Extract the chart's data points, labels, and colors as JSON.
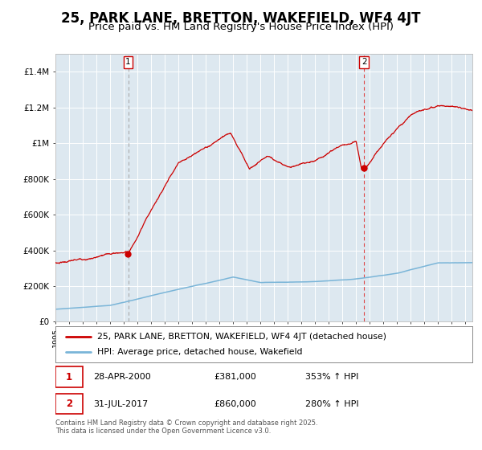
{
  "title": "25, PARK LANE, BRETTON, WAKEFIELD, WF4 4JT",
  "subtitle": "Price paid vs. HM Land Registry's House Price Index (HPI)",
  "ylim": [
    0,
    1500000
  ],
  "yticks": [
    0,
    200000,
    400000,
    600000,
    800000,
    1000000,
    1200000,
    1400000
  ],
  "ytick_labels": [
    "£0",
    "£200K",
    "£400K",
    "£600K",
    "£800K",
    "£1M",
    "£1.2M",
    "£1.4M"
  ],
  "hpi_color": "#7ab5d8",
  "price_color": "#cc0000",
  "vline1_color": "#aaaaaa",
  "vline2_color": "#ee5555",
  "marker_color": "#cc0000",
  "plot_bg_color": "#dde8f0",
  "legend_label_price": "25, PARK LANE, BRETTON, WAKEFIELD, WF4 4JT (detached house)",
  "legend_label_hpi": "HPI: Average price, detached house, Wakefield",
  "sale1_date": 2000.32,
  "sale1_price": 381000,
  "sale2_date": 2017.58,
  "sale2_price": 860000,
  "annotation1_text": "28-APR-2000",
  "annotation1_price": "£381,000",
  "annotation1_hpi": "353% ↑ HPI",
  "annotation2_text": "31-JUL-2017",
  "annotation2_price": "£860,000",
  "annotation2_hpi": "280% ↑ HPI",
  "footer": "Contains HM Land Registry data © Crown copyright and database right 2025.\nThis data is licensed under the Open Government Licence v3.0.",
  "title_fontsize": 12,
  "subtitle_fontsize": 9.5
}
